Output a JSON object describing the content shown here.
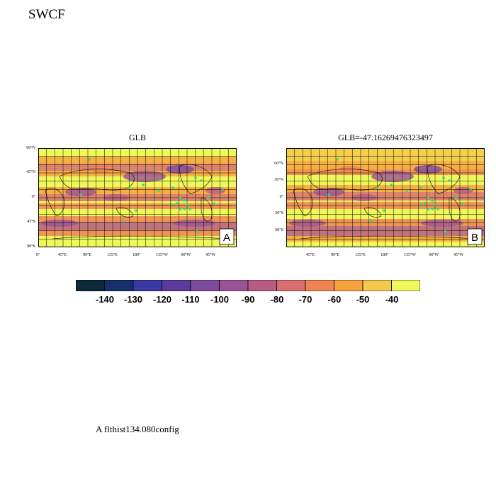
{
  "title": "SWCF",
  "footnote": "A  flthist134.080config",
  "colorbar": {
    "colors": [
      "#0d2a3a",
      "#16306e",
      "#3a3aa4",
      "#5a3a9c",
      "#7e4a9e",
      "#9a5494",
      "#b85c84",
      "#d86e6e",
      "#ee8454",
      "#f6a23e",
      "#f4c84a",
      "#eef85a"
    ],
    "labels": [
      "-140",
      "-130",
      "-120",
      "-110",
      "-100",
      "-90",
      "-80",
      "-70",
      "-60",
      "-50",
      "-40"
    ]
  },
  "panels": [
    {
      "title": "GLB",
      "letter": "A",
      "lat_labels": [
        "90°N",
        "45°N",
        "0°",
        "45°S",
        "90°S"
      ],
      "lon_labels": [
        "0°",
        "45°E",
        "90°E",
        "135°E",
        "180°",
        "135°W",
        "90°W",
        "45°W"
      ]
    },
    {
      "title": "GLB=-47.16269476323497",
      "letter": "B",
      "lat_labels": [
        "60°N",
        "30°N",
        "0°",
        "30°S",
        "60°S"
      ],
      "lon_labels": [
        "45°E",
        "90°E",
        "135°E",
        "180°",
        "135°W",
        "90°W",
        "45°W"
      ]
    }
  ],
  "colors": {
    "background": "#eef85a",
    "stipple": "#22e07a",
    "grid": "#000000"
  }
}
